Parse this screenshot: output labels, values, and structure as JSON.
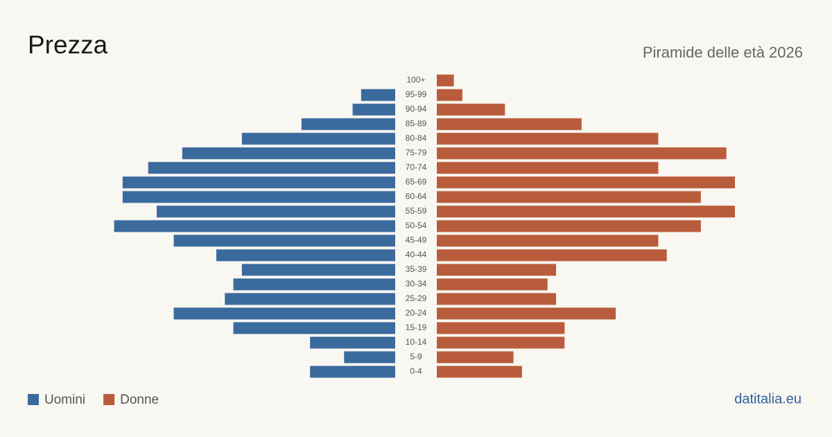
{
  "chart_data": {
    "type": "pyramid",
    "title": "Prezza",
    "subtitle": "Piramide delle età 2026",
    "source": "datitalia.eu",
    "categories": [
      "100+",
      "95-99",
      "90-94",
      "85-89",
      "80-84",
      "75-79",
      "70-74",
      "65-69",
      "60-64",
      "55-59",
      "50-54",
      "45-49",
      "40-44",
      "35-39",
      "30-34",
      "25-29",
      "20-24",
      "15-19",
      "10-14",
      "5-9",
      "0-4"
    ],
    "series": [
      {
        "name": "Uomini",
        "color": "#3b6a9c",
        "values": [
          0,
          4,
          5,
          11,
          18,
          25,
          29,
          32,
          32,
          28,
          33,
          26,
          21,
          18,
          19,
          20,
          26,
          19,
          10,
          6,
          10
        ]
      },
      {
        "name": "Donne",
        "color": "#b95c3b",
        "values": [
          2,
          3,
          8,
          17,
          26,
          34,
          26,
          35,
          31,
          35,
          31,
          26,
          27,
          14,
          13,
          14,
          21,
          15,
          15,
          9,
          10
        ]
      }
    ]
  }
}
